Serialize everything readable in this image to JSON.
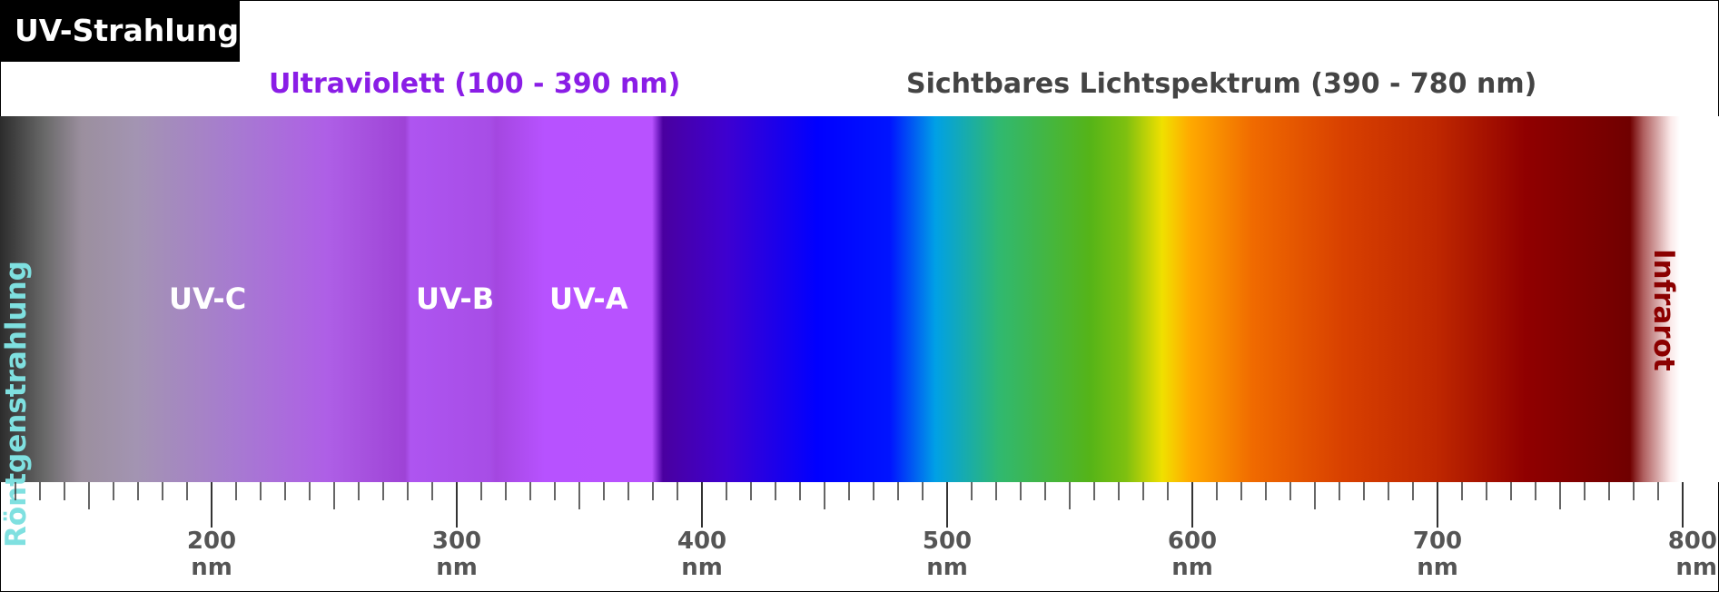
{
  "title": "UV-Strahlung",
  "headers": {
    "uv": "Ultraviolett (100 - 390 nm)",
    "visible": "Sichtbares Lichtspektrum (390 - 780 nm)"
  },
  "bands": {
    "xray": "Röntgenstrahlung",
    "uvc": "UV-C",
    "uvb": "UV-B",
    "uva": "UV-A",
    "infrared": "Infrarot"
  },
  "scale": {
    "unit": "nm",
    "labels": [
      {
        "value": "200",
        "unit": "nm"
      },
      {
        "value": "300",
        "unit": "nm"
      },
      {
        "value": "400",
        "unit": "nm"
      },
      {
        "value": "500",
        "unit": "nm"
      },
      {
        "value": "600",
        "unit": "nm"
      },
      {
        "value": "700",
        "unit": "nm"
      },
      {
        "value": "800",
        "unit": "nm"
      }
    ]
  },
  "colors": {
    "title_bg": "#000000",
    "uv_header": "#8a1de6",
    "visible_header": "#444444",
    "xray_label": "#7fe0e0",
    "infrared_label": "#8b0000",
    "scale_text": "#555555"
  }
}
